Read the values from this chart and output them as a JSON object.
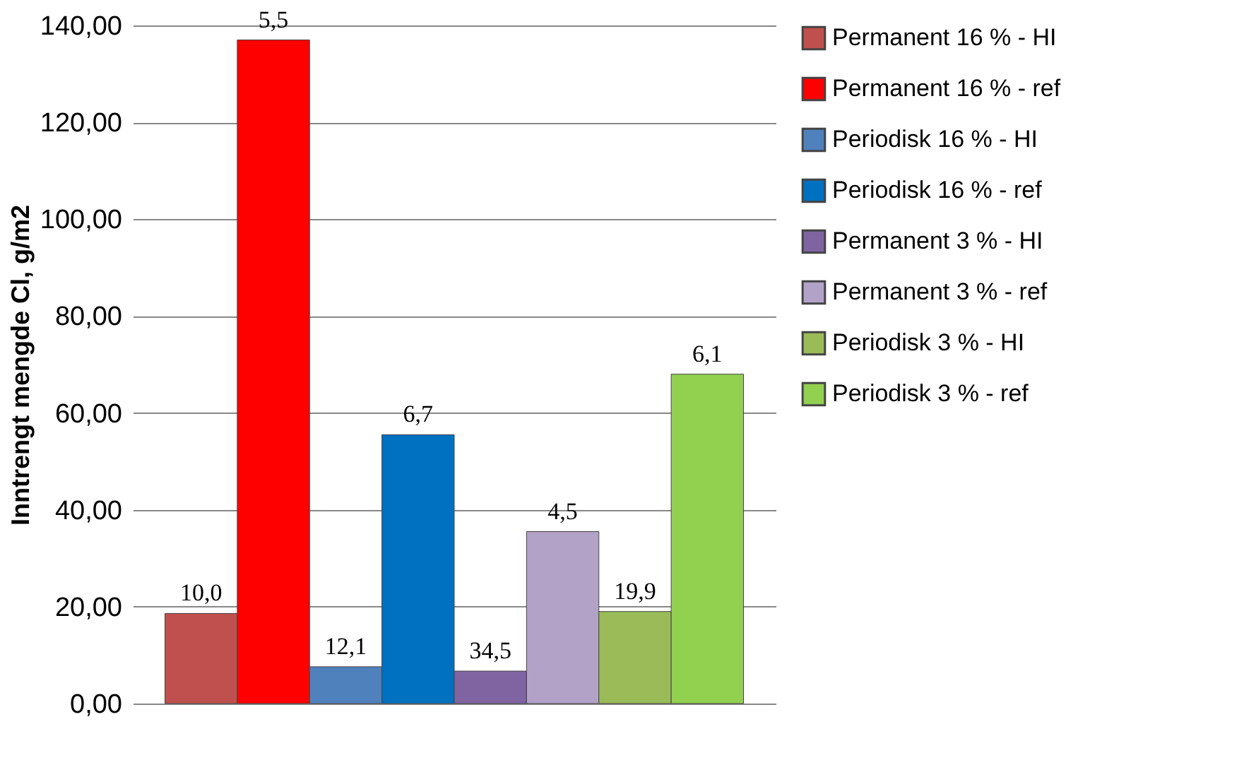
{
  "chart_data": {
    "type": "bar",
    "ylabel": "Inntrengt mengde Cl, g/m2",
    "categories": [
      null
    ],
    "series": [
      {
        "name": "Permanent 16 % - HI",
        "color": "#c0504d",
        "values": [
          18.6
        ]
      },
      {
        "name": "Permanent 16 % - ref",
        "color": "#ff0000",
        "values": [
          137
        ]
      },
      {
        "name": "Periodisk 16 % - HI",
        "color": "#4f81bd",
        "values": [
          7.6
        ]
      },
      {
        "name": "Periodisk 16 % - ref",
        "color": "#0070c0",
        "values": [
          55.5
        ]
      },
      {
        "name": "Permanent 3 % - HI",
        "color": "#8064a2",
        "values": [
          6.7
        ]
      },
      {
        "name": "Permanent 3 % - ref",
        "color": "#b3a2c7",
        "values": [
          35.5
        ]
      },
      {
        "name": "Periodisk 3 % - HI",
        "color": "#9bbb59",
        "values": [
          19
        ]
      },
      {
        "name": "Periodisk 3 % - ref",
        "color": "#92d050",
        "values": [
          68
        ]
      }
    ],
    "annotations": [
      {
        "text": "10,0",
        "y": 18.6
      },
      {
        "text": "5,5",
        "y": 137
      },
      {
        "text": "12,1",
        "y": 7.6
      },
      {
        "text": "6,7",
        "y": 55.5
      },
      {
        "text": "34,5",
        "y": 6.7
      },
      {
        "text": "4,5",
        "y": 35.5
      },
      {
        "text": "19,9",
        "y": 19
      },
      {
        "text": "6,1",
        "y": 68
      }
    ],
    "ylim": [
      0,
      140
    ],
    "yticks": [
      {
        "value": 0,
        "label": "0,00"
      },
      {
        "value": 20,
        "label": "20,00"
      },
      {
        "value": 40,
        "label": "40,00"
      },
      {
        "value": 60,
        "label": "60,00"
      },
      {
        "value": 80,
        "label": "80,00"
      },
      {
        "value": 100,
        "label": "100,00"
      },
      {
        "value": 120,
        "label": "120,00"
      },
      {
        "value": 140,
        "label": "140,00"
      }
    ],
    "grid": "y",
    "legend": "right"
  }
}
